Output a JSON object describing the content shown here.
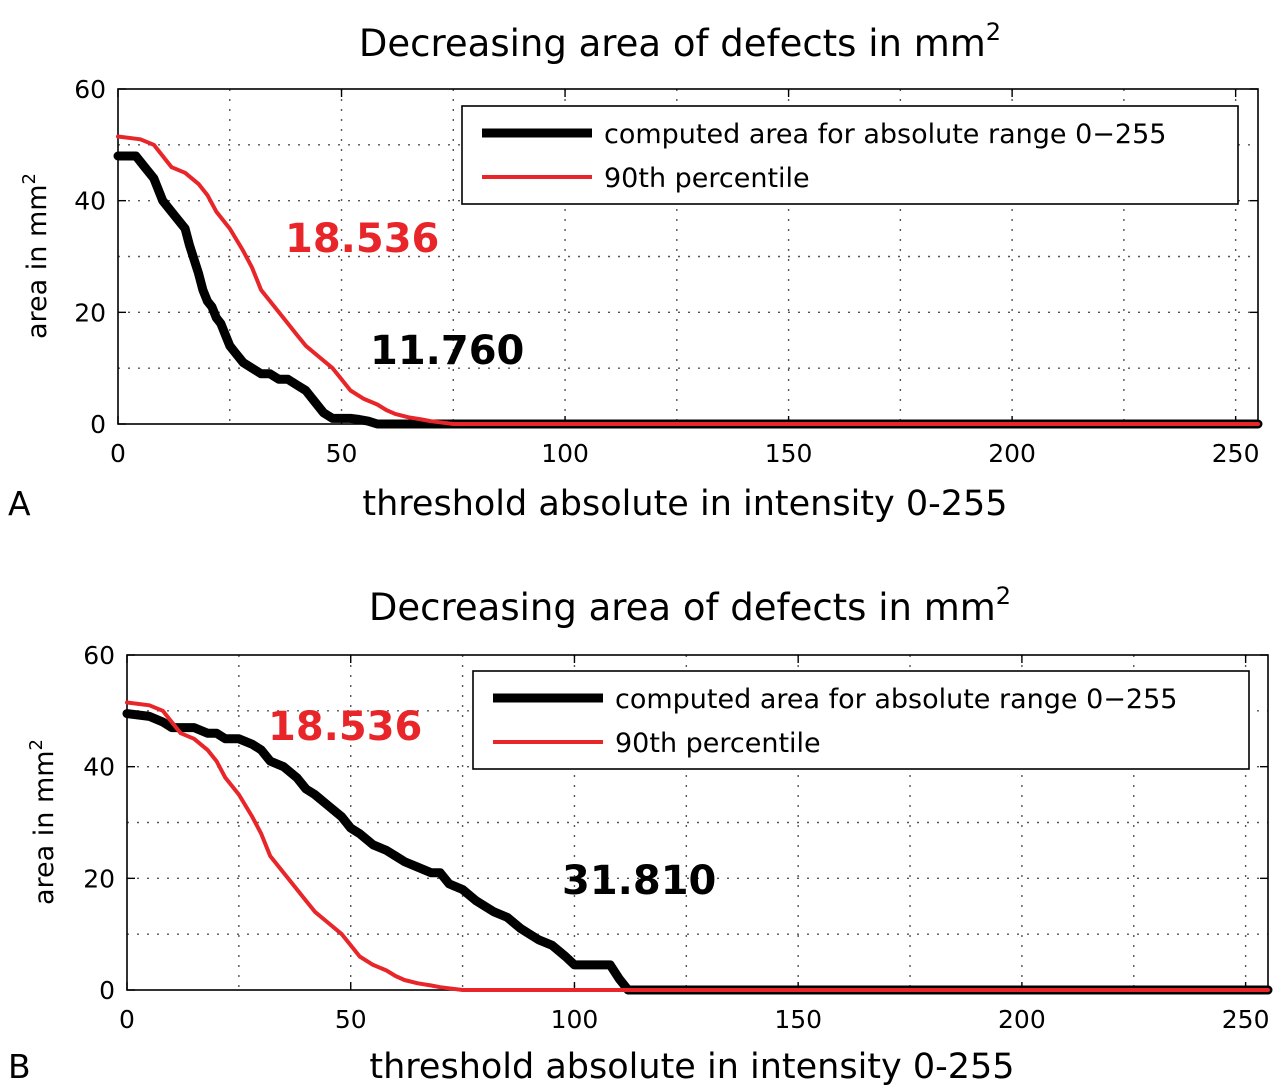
{
  "chart_data": [
    {
      "panel_label": "A",
      "type": "line",
      "title": "Decreasing area of defects in mm",
      "title_superscript": "2",
      "xlabel": "threshold absolute in intensity 0-255",
      "ylabel": "area in mm",
      "ylabel_superscript": "2",
      "xlim": [
        0,
        255
      ],
      "ylim": [
        0,
        60
      ],
      "xticks": [
        0,
        50,
        100,
        150,
        200,
        250
      ],
      "yticks": [
        0,
        20,
        40,
        60
      ],
      "grid": true,
      "legend_position": "top-right",
      "series": [
        {
          "name": "computed area for absolute range 0−255",
          "color": "#000000",
          "x": [
            0,
            4,
            6,
            8,
            10,
            12,
            13,
            15,
            16,
            18,
            19,
            20,
            21,
            22,
            23,
            24,
            25,
            26,
            28,
            30,
            32,
            34,
            36,
            38,
            40,
            42,
            44,
            46,
            48,
            50,
            52,
            54,
            56,
            58,
            60,
            255
          ],
          "y": [
            48,
            48,
            46,
            44,
            40,
            38,
            37,
            35,
            32,
            27,
            24,
            22,
            21,
            19,
            18,
            16,
            14,
            13,
            11,
            10,
            9,
            9,
            8,
            8,
            7,
            6,
            4,
            2,
            1,
            1,
            1,
            0.8,
            0.5,
            0,
            0,
            0
          ]
        },
        {
          "name": "90th percentile",
          "color": "#e8262a",
          "x": [
            0,
            5,
            8,
            10,
            12,
            15,
            18,
            20,
            22,
            25,
            28,
            30,
            32,
            35,
            38,
            40,
            42,
            45,
            48,
            50,
            52,
            55,
            58,
            60,
            62,
            65,
            68,
            70,
            72,
            75,
            255
          ],
          "y": [
            51.5,
            51,
            50,
            48,
            46,
            45,
            43,
            41,
            38,
            35,
            31,
            28,
            24,
            21,
            18,
            16,
            14,
            12,
            10,
            8,
            6,
            4.5,
            3.5,
            2.5,
            1.8,
            1.2,
            0.8,
            0.5,
            0.3,
            0,
            0
          ]
        }
      ],
      "annotations": [
        {
          "text": "18.536",
          "color": "#e8262a",
          "x": 19,
          "y": 36
        },
        {
          "text": "11.760",
          "color": "#000000",
          "x": 40,
          "y": 12
        }
      ]
    },
    {
      "panel_label": "B",
      "type": "line",
      "title": "Decreasing area of defects in mm",
      "title_superscript": "2",
      "xlabel": "threshold absolute in intensity 0-255",
      "ylabel": "area in mm",
      "ylabel_superscript": "2",
      "xlim": [
        0,
        255
      ],
      "ylim": [
        0,
        60
      ],
      "xticks": [
        0,
        50,
        100,
        150,
        200,
        250
      ],
      "yticks": [
        0,
        20,
        40,
        60
      ],
      "grid": true,
      "legend_position": "top-right",
      "series": [
        {
          "name": "computed area for absolute range 0−255",
          "color": "#000000",
          "x": [
            0,
            5,
            8,
            10,
            15,
            18,
            20,
            22,
            25,
            28,
            30,
            32,
            35,
            38,
            40,
            42,
            45,
            48,
            50,
            52,
            55,
            58,
            60,
            62,
            65,
            68,
            70,
            72,
            75,
            78,
            80,
            82,
            85,
            88,
            90,
            92,
            95,
            98,
            100,
            105,
            108,
            110,
            112,
            115,
            255
          ],
          "y": [
            49.5,
            49,
            48,
            47,
            47,
            46,
            46,
            45,
            45,
            44,
            43,
            41,
            40,
            38,
            36,
            35,
            33,
            31,
            29,
            28,
            26,
            25,
            24,
            23,
            22,
            21,
            21,
            19,
            18,
            16,
            15,
            14,
            13,
            11,
            10,
            9,
            8,
            6,
            4.5,
            4.5,
            4.5,
            2,
            0,
            0,
            0
          ]
        },
        {
          "name": "90th percentile",
          "color": "#e8262a",
          "x": [
            0,
            5,
            8,
            10,
            12,
            15,
            18,
            20,
            22,
            25,
            28,
            30,
            32,
            35,
            38,
            40,
            42,
            45,
            48,
            50,
            52,
            55,
            58,
            60,
            62,
            65,
            68,
            70,
            72,
            75,
            255
          ],
          "y": [
            51.5,
            51,
            50,
            48,
            46,
            45,
            43,
            41,
            38,
            35,
            31,
            28,
            24,
            21,
            18,
            16,
            14,
            12,
            10,
            8,
            6,
            4.5,
            3.5,
            2.5,
            1.8,
            1.2,
            0.8,
            0.5,
            0.3,
            0,
            0
          ]
        }
      ],
      "annotations": [
        {
          "text": "18.536",
          "color": "#e8262a",
          "x": 32,
          "y": 45
        },
        {
          "text": "31.810",
          "color": "#000000",
          "x": 97,
          "y": 19
        }
      ]
    }
  ]
}
